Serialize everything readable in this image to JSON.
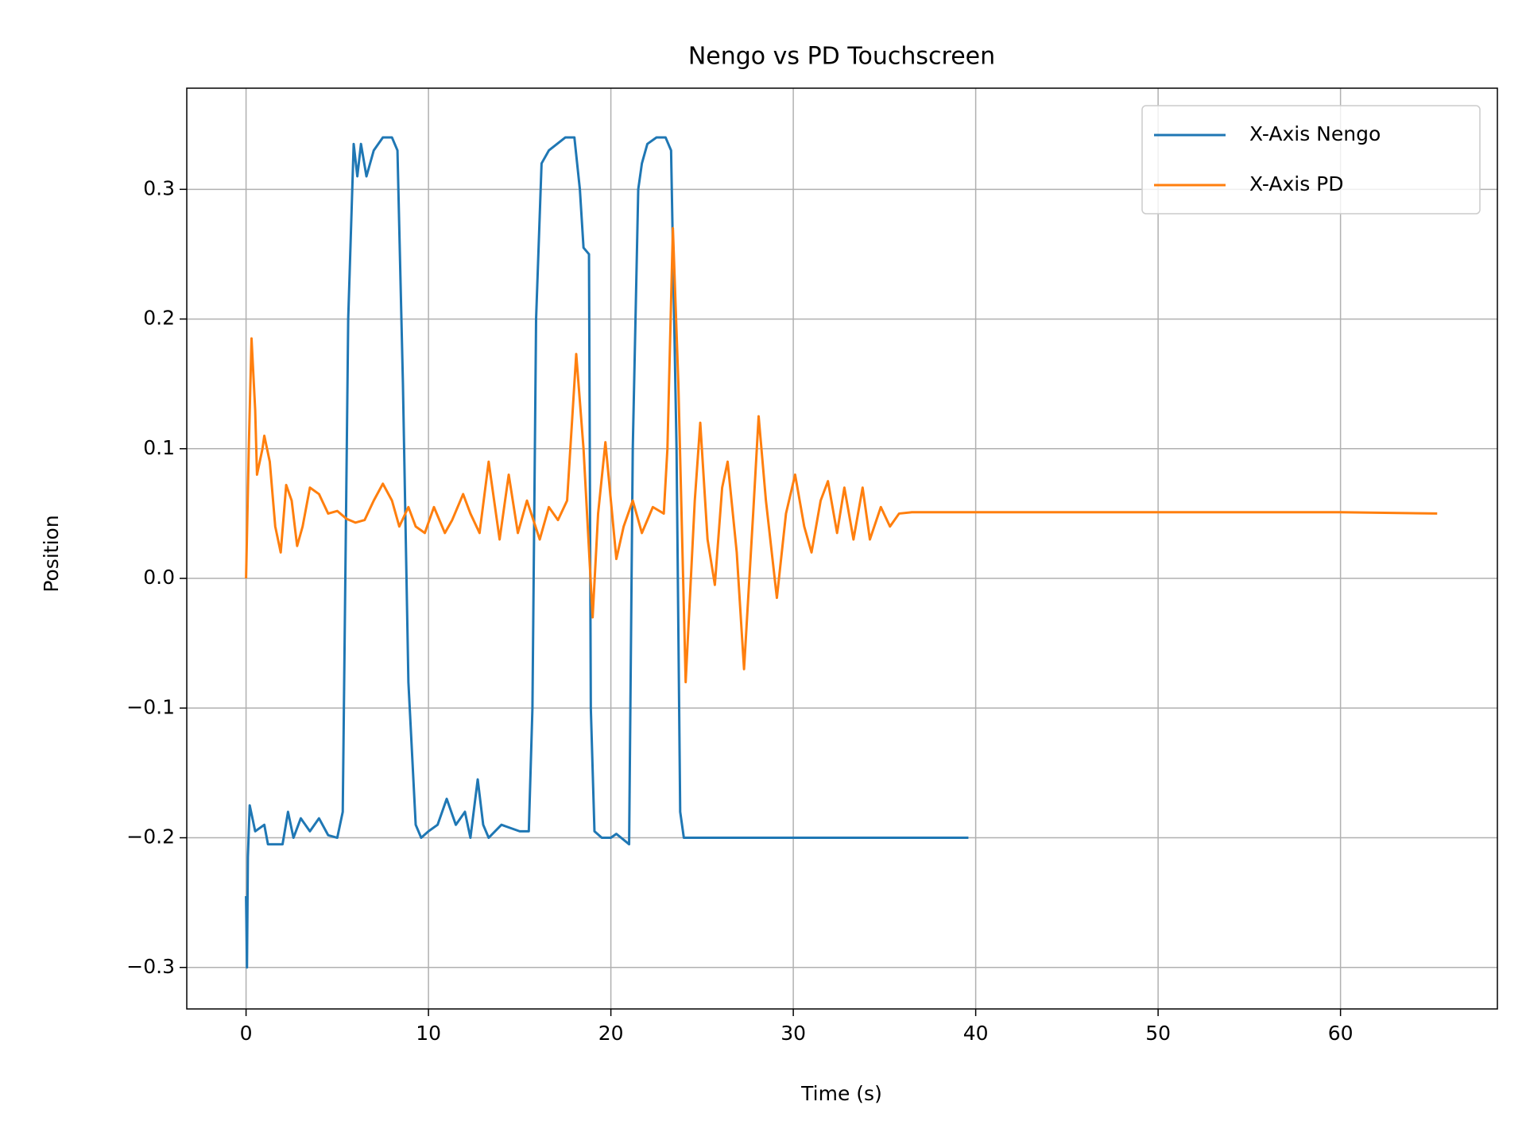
{
  "chart_data": {
    "type": "line",
    "title": "Nengo vs PD Touchscreen",
    "x_label": "Time (s)",
    "y_label": "Position",
    "xlim": [
      -3.25,
      68.6
    ],
    "ylim": [
      -0.332,
      0.378
    ],
    "xticks": [
      0,
      10,
      20,
      30,
      40,
      50,
      60
    ],
    "yticks": [
      {
        "value": -0.3,
        "label": "−0.3"
      },
      {
        "value": -0.2,
        "label": "−0.2"
      },
      {
        "value": -0.1,
        "label": "−0.1"
      },
      {
        "value": 0,
        "label": "0.0"
      },
      0.1,
      0.2,
      0.3
    ],
    "grid": true,
    "legend": "upper right",
    "series": [
      {
        "name": "X-Axis Nengo",
        "color": "#1f77b4",
        "x": [
          0,
          0.05,
          0.1,
          0.2,
          0.5,
          1,
          1.2,
          2,
          2.3,
          2.6,
          3,
          3.5,
          4,
          4.5,
          5,
          5.3,
          5.6,
          5.9,
          6.1,
          6.3,
          6.6,
          7,
          7.5,
          8,
          8.3,
          8.6,
          8.9,
          9.3,
          9.6,
          10,
          10.5,
          11,
          11.5,
          12,
          12.3,
          12.7,
          13,
          13.3,
          14,
          15,
          15.5,
          15.7,
          15.9,
          16.2,
          16.6,
          17.5,
          18,
          18.3,
          18.5,
          18.8,
          18.9,
          19.1,
          19.5,
          20,
          20.3,
          21,
          21.2,
          21.5,
          21.7,
          22,
          22.5,
          23,
          23.3,
          23.6,
          23.8,
          24,
          30,
          39.6
        ],
        "values": [
          -0.245,
          -0.3,
          -0.215,
          -0.175,
          -0.195,
          -0.19,
          -0.205,
          -0.205,
          -0.18,
          -0.2,
          -0.185,
          -0.195,
          -0.185,
          -0.198,
          -0.2,
          -0.18,
          0.2,
          0.335,
          0.31,
          0.335,
          0.31,
          0.33,
          0.34,
          0.34,
          0.33,
          0.15,
          -0.08,
          -0.19,
          -0.2,
          -0.195,
          -0.19,
          -0.17,
          -0.19,
          -0.18,
          -0.2,
          -0.155,
          -0.19,
          -0.2,
          -0.19,
          -0.195,
          -0.195,
          -0.1,
          0.2,
          0.32,
          0.33,
          0.34,
          0.34,
          0.3,
          0.255,
          0.25,
          -0.1,
          -0.195,
          -0.2,
          -0.2,
          -0.197,
          -0.205,
          0.1,
          0.3,
          0.32,
          0.335,
          0.34,
          0.34,
          0.33,
          0.1,
          -0.18,
          -0.2,
          -0.2,
          -0.2
        ]
      },
      {
        "name": "X-Axis PD",
        "color": "#ff7f0e",
        "x": [
          0,
          0.15,
          0.3,
          0.5,
          0.6,
          0.9,
          1,
          1.3,
          1.6,
          1.9,
          2.2,
          2.5,
          2.8,
          3.1,
          3.5,
          4,
          4.5,
          5,
          5.5,
          6,
          6.5,
          7,
          7.5,
          8,
          8.4,
          8.9,
          9.3,
          9.8,
          10.3,
          10.9,
          11.3,
          11.9,
          12.3,
          12.8,
          13.3,
          13.9,
          14.4,
          14.9,
          15.4,
          16.1,
          16.6,
          17.1,
          17.6,
          18.1,
          18.5,
          19,
          19.3,
          19.7,
          20.3,
          20.7,
          21.2,
          21.7,
          22.3,
          22.9,
          23.1,
          23.4,
          23.7,
          24.1,
          24.6,
          24.9,
          25.3,
          25.7,
          26.1,
          26.4,
          26.9,
          27.3,
          27.8,
          28.1,
          28.5,
          29.1,
          29.6,
          30.1,
          30.6,
          31,
          31.5,
          31.9,
          32.4,
          32.8,
          33.3,
          33.8,
          34.2,
          34.8,
          35.3,
          35.8,
          36.5,
          40,
          50,
          60,
          65.3
        ],
        "values": [
          0,
          0.1,
          0.185,
          0.13,
          0.08,
          0.1,
          0.11,
          0.09,
          0.04,
          0.02,
          0.072,
          0.06,
          0.025,
          0.04,
          0.07,
          0.065,
          0.05,
          0.052,
          0.046,
          0.043,
          0.045,
          0.06,
          0.073,
          0.06,
          0.04,
          0.055,
          0.04,
          0.035,
          0.055,
          0.035,
          0.045,
          0.065,
          0.05,
          0.035,
          0.09,
          0.03,
          0.08,
          0.035,
          0.06,
          0.03,
          0.055,
          0.045,
          0.06,
          0.173,
          0.1,
          -0.03,
          0.05,
          0.105,
          0.015,
          0.04,
          0.06,
          0.035,
          0.055,
          0.05,
          0.1,
          0.27,
          0.15,
          -0.08,
          0.06,
          0.12,
          0.03,
          -0.005,
          0.07,
          0.09,
          0.02,
          -0.07,
          0.05,
          0.125,
          0.06,
          -0.015,
          0.05,
          0.08,
          0.04,
          0.02,
          0.06,
          0.075,
          0.035,
          0.07,
          0.03,
          0.07,
          0.03,
          0.055,
          0.04,
          0.05,
          0.051,
          0.051,
          0.051,
          0.051,
          0.05
        ]
      }
    ]
  }
}
